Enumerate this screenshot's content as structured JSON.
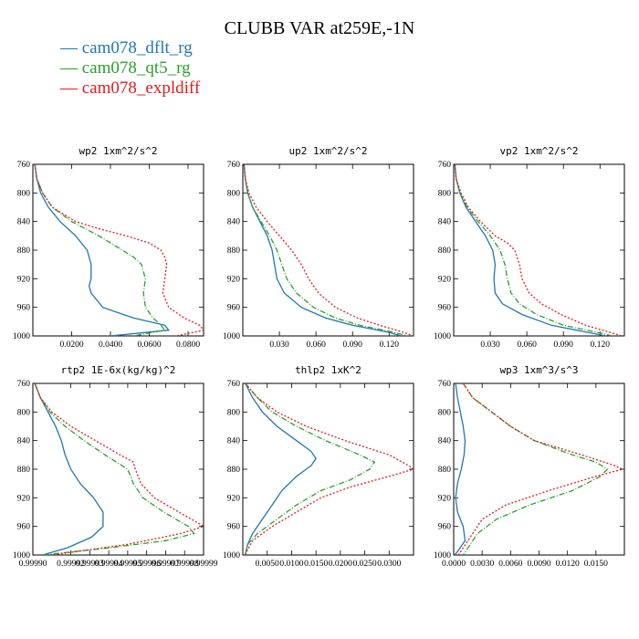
{
  "figure_title": "CLUBB VAR at259E,-1N",
  "legend": [
    {
      "label": "cam078_dflt_rg",
      "color": "#1f77b4",
      "dash": ""
    },
    {
      "label": "cam078_qt5_rg",
      "color": "#2ca02c",
      "dash": "6,2,1,2"
    },
    {
      "label": "cam078_expldiff",
      "color": "#e41a1c",
      "dash": "2,2"
    }
  ],
  "chart_data": [
    {
      "type": "line",
      "title": "wp2   1xm^2/s^2",
      "xlim": [
        0,
        0.088
      ],
      "ylim": [
        760,
        1000
      ],
      "y_inverted": true,
      "xticks": [
        0.02,
        0.04,
        0.06,
        0.08
      ],
      "xtick_labels": [
        "0.0200",
        "0.0400",
        "0.0600",
        "0.0800"
      ],
      "yticks": [
        760,
        800,
        840,
        880,
        920,
        960,
        1000
      ],
      "ytick_labels": [
        "760",
        "800",
        "840",
        "880",
        "920",
        "960",
        "1000"
      ],
      "series": [
        {
          "y": [
            760,
            780,
            800,
            820,
            840,
            860,
            880,
            900,
            920,
            930,
            940,
            960,
            975,
            985,
            992,
            1000
          ],
          "x": [
            0.001,
            0.002,
            0.004,
            0.008,
            0.014,
            0.022,
            0.028,
            0.03,
            0.03,
            0.029,
            0.03,
            0.036,
            0.052,
            0.068,
            0.07,
            0.04
          ]
        },
        {
          "y": [
            760,
            780,
            800,
            820,
            840,
            860,
            880,
            890,
            900,
            920,
            940,
            960,
            975,
            985,
            992,
            1000
          ],
          "x": [
            0.001,
            0.002,
            0.005,
            0.01,
            0.02,
            0.034,
            0.046,
            0.052,
            0.056,
            0.058,
            0.057,
            0.058,
            0.062,
            0.066,
            0.068,
            0.052
          ]
        },
        {
          "y": [
            760,
            780,
            800,
            820,
            840,
            850,
            860,
            870,
            880,
            890,
            900,
            920,
            940,
            960,
            975,
            985,
            992,
            1000
          ],
          "x": [
            0.001,
            0.002,
            0.005,
            0.01,
            0.022,
            0.034,
            0.048,
            0.06,
            0.066,
            0.068,
            0.069,
            0.068,
            0.067,
            0.07,
            0.078,
            0.086,
            0.088,
            0.074
          ]
        }
      ]
    },
    {
      "type": "line",
      "title": "up2   1xm^2/s^2",
      "xlim": [
        0,
        0.14
      ],
      "ylim": [
        760,
        1000
      ],
      "y_inverted": true,
      "xticks": [
        0.03,
        0.06,
        0.09,
        0.12
      ],
      "xtick_labels": [
        "0.030",
        "0.060",
        "0.090",
        "0.120"
      ],
      "yticks": [
        760,
        800,
        840,
        880,
        920,
        960,
        1000
      ],
      "ytick_labels": [
        "760",
        "800",
        "840",
        "880",
        "920",
        "960",
        "1000"
      ],
      "series": [
        {
          "y": [
            760,
            780,
            800,
            820,
            840,
            860,
            880,
            900,
            920,
            940,
            960,
            975,
            985,
            995,
            1000
          ],
          "x": [
            0.001,
            0.002,
            0.004,
            0.008,
            0.014,
            0.02,
            0.024,
            0.026,
            0.028,
            0.034,
            0.048,
            0.068,
            0.09,
            0.12,
            0.13
          ]
        },
        {
          "y": [
            760,
            780,
            800,
            820,
            840,
            860,
            880,
            900,
            920,
            940,
            960,
            975,
            985,
            995,
            1000
          ],
          "x": [
            0.001,
            0.002,
            0.004,
            0.008,
            0.015,
            0.022,
            0.028,
            0.032,
            0.036,
            0.044,
            0.058,
            0.076,
            0.096,
            0.124,
            0.135
          ]
        },
        {
          "y": [
            760,
            780,
            800,
            820,
            840,
            860,
            880,
            900,
            920,
            940,
            960,
            975,
            985,
            995,
            1000
          ],
          "x": [
            0.001,
            0.002,
            0.005,
            0.011,
            0.02,
            0.03,
            0.04,
            0.048,
            0.054,
            0.062,
            0.076,
            0.094,
            0.112,
            0.132,
            0.14
          ]
        }
      ]
    },
    {
      "type": "line",
      "title": "vp2   1xm^2/s^2",
      "xlim": [
        0,
        0.14
      ],
      "ylim": [
        760,
        1000
      ],
      "y_inverted": true,
      "xticks": [
        0.03,
        0.06,
        0.09,
        0.12
      ],
      "xtick_labels": [
        "0.030",
        "0.060",
        "0.090",
        "0.120"
      ],
      "yticks": [
        760,
        800,
        840,
        880,
        920,
        960,
        1000
      ],
      "ytick_labels": [
        "760",
        "800",
        "840",
        "880",
        "920",
        "960",
        "1000"
      ],
      "series": [
        {
          "y": [
            760,
            780,
            800,
            820,
            840,
            860,
            880,
            900,
            920,
            940,
            955,
            970,
            985,
            995,
            1000
          ],
          "x": [
            0.001,
            0.002,
            0.005,
            0.01,
            0.018,
            0.026,
            0.032,
            0.034,
            0.033,
            0.034,
            0.04,
            0.056,
            0.08,
            0.11,
            0.125
          ]
        },
        {
          "y": [
            760,
            780,
            800,
            820,
            840,
            860,
            880,
            900,
            920,
            940,
            955,
            970,
            985,
            995,
            1000
          ],
          "x": [
            0.001,
            0.002,
            0.005,
            0.011,
            0.02,
            0.03,
            0.038,
            0.042,
            0.044,
            0.047,
            0.054,
            0.068,
            0.09,
            0.118,
            0.13
          ]
        },
        {
          "y": [
            760,
            780,
            800,
            820,
            840,
            860,
            870,
            880,
            900,
            920,
            940,
            955,
            970,
            985,
            995,
            1000
          ],
          "x": [
            0.001,
            0.002,
            0.006,
            0.012,
            0.022,
            0.034,
            0.044,
            0.05,
            0.054,
            0.056,
            0.062,
            0.072,
            0.088,
            0.108,
            0.128,
            0.138
          ]
        }
      ]
    },
    {
      "type": "line",
      "title": "rtp2   1E-6x(kg/kg)^2",
      "xlim": [
        0.9999,
        0.99999
      ],
      "ylim": [
        760,
        1000
      ],
      "y_inverted": true,
      "xticks": [
        0.9999,
        0.99992,
        0.99993,
        0.99994,
        0.99995,
        0.99996,
        0.99997,
        0.99998,
        0.99999
      ],
      "xtick_labels": [
        "0.99990",
        "0.99992",
        "0.99993",
        "0.99994",
        "0.99995",
        "0.99996",
        "0.99997",
        "0.99998",
        "0.99999"
      ],
      "yticks": [
        760,
        800,
        840,
        880,
        920,
        960,
        1000
      ],
      "ytick_labels": [
        "760",
        "800",
        "840",
        "880",
        "920",
        "960",
        "1000"
      ],
      "series": [
        {
          "y": [
            760,
            780,
            800,
            820,
            840,
            860,
            880,
            900,
            920,
            940,
            960,
            975,
            990,
            1000
          ],
          "x": [
            0.999901,
            0.999904,
            0.999908,
            0.999912,
            0.999915,
            0.999917,
            0.99992,
            0.999925,
            0.999932,
            0.999937,
            0.999937,
            0.999931,
            0.999918,
            0.999905
          ]
        },
        {
          "y": [
            760,
            780,
            800,
            820,
            840,
            860,
            880,
            900,
            920,
            940,
            960,
            970,
            980,
            990,
            1000
          ],
          "x": [
            0.999901,
            0.999904,
            0.999909,
            0.999917,
            0.999927,
            0.999938,
            0.99995,
            0.999953,
            0.999958,
            0.999969,
            0.999982,
            0.999985,
            0.99997,
            0.99994,
            0.999905
          ]
        },
        {
          "y": [
            760,
            780,
            800,
            820,
            840,
            860,
            870,
            880,
            900,
            920,
            940,
            955,
            960,
            970,
            985,
            1000
          ],
          "x": [
            0.999901,
            0.999904,
            0.99991,
            0.99992,
            0.999933,
            0.999946,
            0.999953,
            0.999954,
            0.999957,
            0.999964,
            0.999977,
            0.999987,
            0.99999,
            0.999978,
            0.99995,
            0.99991
          ]
        }
      ]
    },
    {
      "type": "line",
      "title": "thlp2   1xK^2",
      "xlim": [
        0,
        0.035
      ],
      "ylim": [
        760,
        1000
      ],
      "y_inverted": true,
      "xticks": [
        0.005,
        0.01,
        0.015,
        0.02,
        0.025,
        0.03
      ],
      "xtick_labels": [
        "0.0050",
        "0.0100",
        "0.0150",
        "0.0200",
        "0.0250",
        "0.0300"
      ],
      "yticks": [
        760,
        800,
        840,
        880,
        920,
        960,
        1000
      ],
      "ytick_labels": [
        "760",
        "800",
        "840",
        "880",
        "920",
        "960",
        "1000"
      ],
      "series": [
        {
          "y": [
            760,
            780,
            800,
            820,
            840,
            855,
            865,
            875,
            890,
            910,
            930,
            950,
            970,
            985,
            1000
          ],
          "x": [
            0.0005,
            0.002,
            0.004,
            0.007,
            0.011,
            0.014,
            0.015,
            0.014,
            0.011,
            0.008,
            0.006,
            0.004,
            0.002,
            0.001,
            0.0005
          ]
        },
        {
          "y": [
            760,
            780,
            800,
            820,
            840,
            860,
            870,
            880,
            895,
            910,
            930,
            950,
            970,
            985,
            1000
          ],
          "x": [
            0.0005,
            0.003,
            0.006,
            0.011,
            0.017,
            0.024,
            0.027,
            0.026,
            0.022,
            0.016,
            0.011,
            0.007,
            0.003,
            0.001,
            0.0005
          ]
        },
        {
          "y": [
            760,
            780,
            800,
            820,
            840,
            860,
            875,
            880,
            890,
            905,
            920,
            940,
            960,
            980,
            995,
            1000
          ],
          "x": [
            0.0005,
            0.003,
            0.007,
            0.013,
            0.021,
            0.03,
            0.034,
            0.035,
            0.03,
            0.022,
            0.016,
            0.011,
            0.006,
            0.002,
            0.0008,
            0.0005
          ]
        }
      ]
    },
    {
      "type": "line",
      "title": "wp3   1xm^3/s^3",
      "xlim": [
        0,
        0.018
      ],
      "ylim": [
        760,
        1000
      ],
      "y_inverted": true,
      "xticks": [
        0,
        0.003,
        0.006,
        0.009,
        0.012,
        0.015
      ],
      "xtick_labels": [
        "0.0000",
        "0.0030",
        "0.0060",
        "0.0090",
        "0.0120",
        "0.0150"
      ],
      "yticks": [
        760,
        800,
        840,
        880,
        920,
        960,
        1000
      ],
      "ytick_labels": [
        "760",
        "800",
        "840",
        "880",
        "920",
        "960",
        "1000"
      ],
      "series": [
        {
          "y": [
            760,
            780,
            800,
            820,
            840,
            860,
            880,
            900,
            920,
            940,
            960,
            980,
            995,
            1000
          ],
          "x": [
            0.0002,
            0.0004,
            0.0007,
            0.001,
            0.0012,
            0.0011,
            0.0008,
            0.0004,
            0.0002,
            0.0004,
            0.001,
            0.0012,
            0.0004,
            0.0001
          ]
        },
        {
          "y": [
            760,
            780,
            800,
            820,
            840,
            860,
            870,
            880,
            890,
            910,
            930,
            950,
            970,
            990,
            1000
          ],
          "x": [
            0.001,
            0.002,
            0.004,
            0.006,
            0.0085,
            0.0125,
            0.015,
            0.0162,
            0.0155,
            0.0125,
            0.008,
            0.0045,
            0.0025,
            0.0015,
            0.001
          ]
        },
        {
          "y": [
            760,
            780,
            800,
            820,
            840,
            860,
            875,
            880,
            890,
            910,
            930,
            950,
            970,
            990,
            1000
          ],
          "x": [
            0.001,
            0.002,
            0.004,
            0.006,
            0.0085,
            0.0135,
            0.017,
            0.0178,
            0.015,
            0.01,
            0.0055,
            0.003,
            0.002,
            0.001,
            0.0005
          ]
        }
      ]
    }
  ]
}
